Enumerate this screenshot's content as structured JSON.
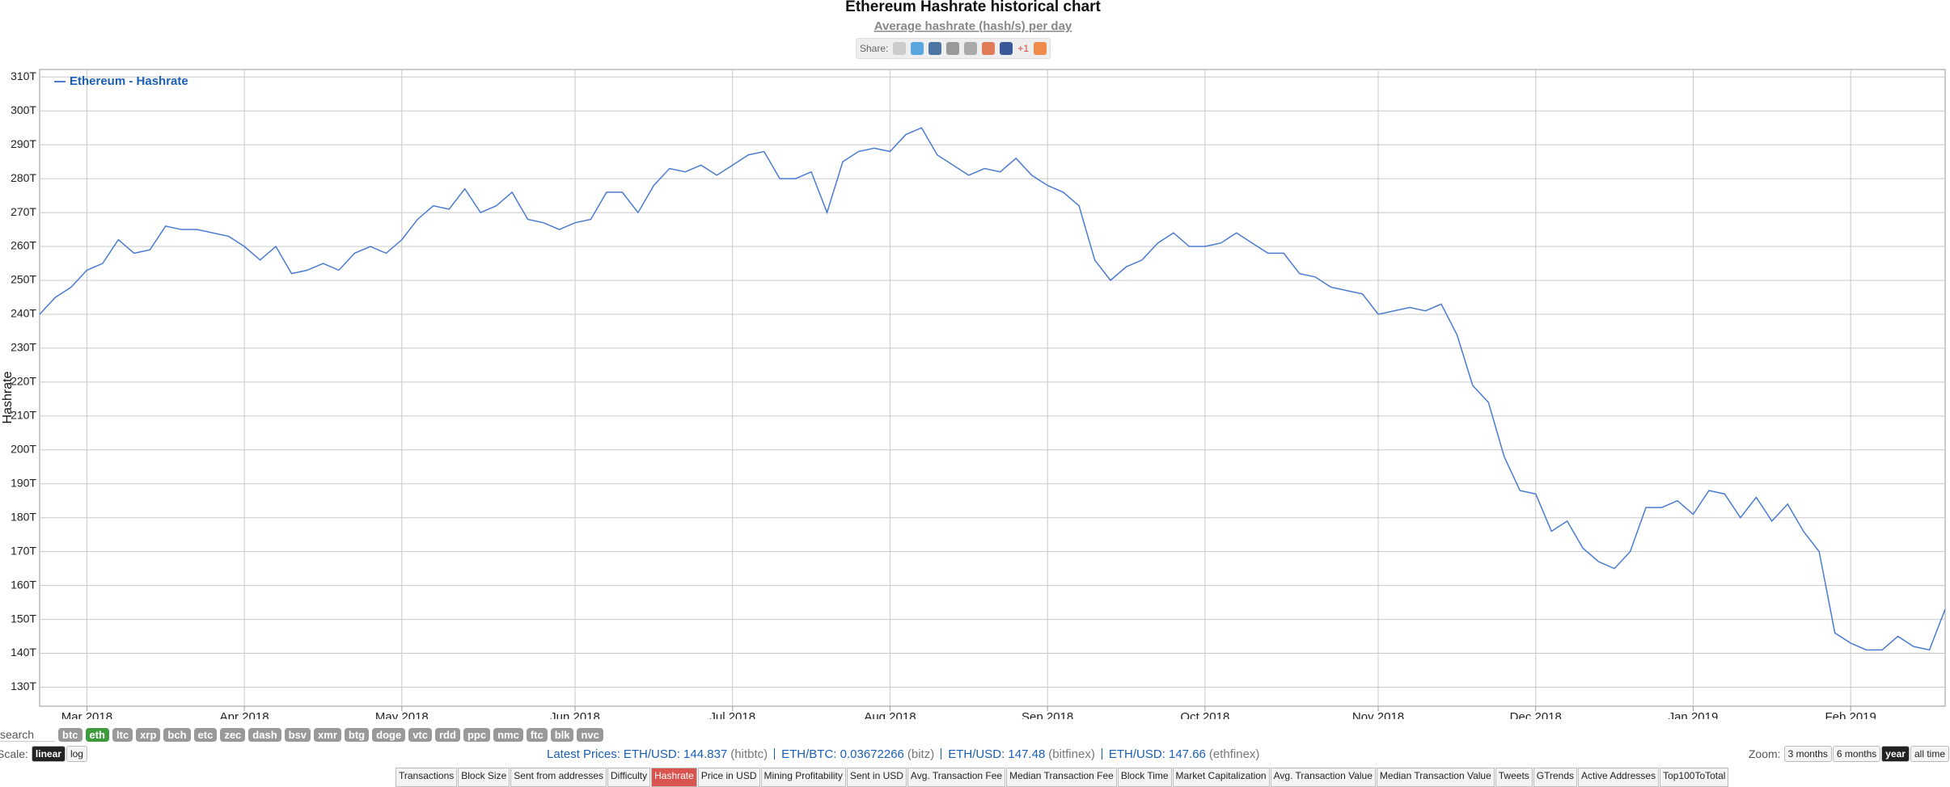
{
  "chart_data": {
    "type": "line",
    "title": "Ethereum Hashrate historical chart",
    "subtitle": "Average hashrate (hash/s) per day",
    "y_label": "Hashrate",
    "legend": "top-left",
    "grid": true,
    "categories": [
      null,
      null,
      null,
      "Mar 2018",
      null,
      null,
      null,
      null,
      null,
      null,
      null,
      null,
      null,
      "Apr 2018",
      null,
      null,
      null,
      null,
      null,
      null,
      null,
      null,
      null,
      "May 2018",
      null,
      null,
      null,
      null,
      null,
      null,
      null,
      null,
      null,
      null,
      "Jun 2018",
      null,
      null,
      null,
      null,
      null,
      null,
      null,
      null,
      null,
      "Jul 2018",
      null,
      null,
      null,
      null,
      null,
      null,
      null,
      null,
      null,
      "Aug 2018",
      null,
      null,
      null,
      null,
      null,
      null,
      null,
      null,
      null,
      "Sep 2018",
      null,
      null,
      null,
      null,
      null,
      null,
      null,
      null,
      null,
      "Oct 2018",
      null,
      null,
      null,
      null,
      null,
      null,
      null,
      null,
      null,
      null,
      "Nov 2018",
      null,
      null,
      null,
      null,
      null,
      null,
      null,
      null,
      null,
      "Dec 2018",
      null,
      null,
      null,
      null,
      null,
      null,
      null,
      null,
      null,
      "Jan 2019",
      null,
      null,
      null,
      null,
      null,
      null,
      null,
      null,
      null,
      "Feb 2019",
      null,
      null,
      null,
      null,
      null,
      null
    ],
    "series": [
      {
        "name": "Ethereum - Hashrate",
        "color": "#4a7bd0",
        "values": [
          240,
          245,
          248,
          253,
          255,
          262,
          258,
          259,
          266,
          265,
          265,
          264,
          263,
          260,
          256,
          260,
          252,
          253,
          255,
          253,
          258,
          260,
          258,
          262,
          268,
          272,
          271,
          277,
          270,
          272,
          276,
          268,
          267,
          265,
          267,
          268,
          276,
          276,
          270,
          278,
          283,
          282,
          284,
          281,
          284,
          287,
          288,
          280,
          280,
          282,
          270,
          285,
          288,
          289,
          288,
          293,
          295,
          287,
          284,
          281,
          283,
          282,
          286,
          281,
          278,
          276,
          272,
          256,
          250,
          254,
          256,
          261,
          264,
          260,
          260,
          261,
          264,
          261,
          258,
          258,
          252,
          251,
          248,
          247,
          246,
          240,
          241,
          242,
          241,
          243,
          234,
          219,
          214,
          198,
          188,
          187,
          176,
          179,
          171,
          167,
          165,
          170,
          183,
          183,
          185,
          181,
          188,
          187,
          180,
          186,
          179,
          184,
          176,
          170,
          146,
          143,
          141,
          141,
          145,
          142,
          141,
          153
        ]
      }
    ],
    "ylim": [
      124.4,
      312.2
    ],
    "yticks": [
      {
        "value": 130,
        "label": "130T"
      },
      {
        "value": 140,
        "label": "140T"
      },
      {
        "value": 150,
        "label": "150T"
      },
      {
        "value": 160,
        "label": "160T"
      },
      {
        "value": 170,
        "label": "170T"
      },
      {
        "value": 180,
        "label": "180T"
      },
      {
        "value": 190,
        "label": "190T"
      },
      {
        "value": 200,
        "label": "200T"
      },
      {
        "value": 210,
        "label": "210T"
      },
      {
        "value": 220,
        "label": "220T"
      },
      {
        "value": 230,
        "label": "230T"
      },
      {
        "value": 240,
        "label": "240T"
      },
      {
        "value": 250,
        "label": "250T"
      },
      {
        "value": 260,
        "label": "260T"
      },
      {
        "value": 270,
        "label": "270T"
      },
      {
        "value": 280,
        "label": "280T"
      },
      {
        "value": 290,
        "label": "290T"
      },
      {
        "value": 300,
        "label": "300T"
      },
      {
        "value": 310,
        "label": "310T"
      }
    ]
  },
  "share": {
    "label": "Share:",
    "gplus_count": "+1"
  },
  "search": "search",
  "coins": [
    {
      "label": "btc",
      "active": false
    },
    {
      "label": "eth",
      "active": true
    },
    {
      "label": "ltc",
      "active": false
    },
    {
      "label": "xrp",
      "active": false
    },
    {
      "label": "bch",
      "active": false
    },
    {
      "label": "etc",
      "active": false
    },
    {
      "label": "zec",
      "active": false
    },
    {
      "label": "dash",
      "active": false
    },
    {
      "label": "bsv",
      "active": false
    },
    {
      "label": "xmr",
      "active": false
    },
    {
      "label": "btg",
      "active": false
    },
    {
      "label": "doge",
      "active": false
    },
    {
      "label": "vtc",
      "active": false
    },
    {
      "label": "rdd",
      "active": false
    },
    {
      "label": "ppc",
      "active": false
    },
    {
      "label": "nmc",
      "active": false
    },
    {
      "label": "ftc",
      "active": false
    },
    {
      "label": "blk",
      "active": false
    },
    {
      "label": "nvc",
      "active": false
    }
  ],
  "scale": {
    "label": "Scale:",
    "options": [
      {
        "label": "linear",
        "active": true
      },
      {
        "label": "log",
        "active": false
      }
    ]
  },
  "prices": {
    "label": "Latest Prices:",
    "items": [
      {
        "pair": "ETH/USD: 144.837",
        "source": "(hitbtc)"
      },
      {
        "pair": "ETH/BTC: 0.03672266",
        "source": "(bitz)"
      },
      {
        "pair": "ETH/USD: 147.48",
        "source": "(bitfinex)"
      },
      {
        "pair": "ETH/USD: 147.66",
        "source": "(ethfinex)"
      }
    ]
  },
  "zoom": {
    "label": "Zoom:",
    "options": [
      {
        "label": "3 months",
        "active": false
      },
      {
        "label": "6 months",
        "active": false
      },
      {
        "label": "year",
        "active": true
      },
      {
        "label": "all time",
        "active": false
      }
    ]
  },
  "tabs": [
    {
      "label": "Transactions",
      "active": false
    },
    {
      "label": "Block Size",
      "active": false
    },
    {
      "label": "Sent from addresses",
      "active": false
    },
    {
      "label": "Difficulty",
      "active": false
    },
    {
      "label": "Hashrate",
      "active": true
    },
    {
      "label": "Price in USD",
      "active": false
    },
    {
      "label": "Mining Profitability",
      "active": false
    },
    {
      "label": "Sent in USD",
      "active": false
    },
    {
      "label": "Avg. Transaction Fee",
      "active": false
    },
    {
      "label": "Median Transaction Fee",
      "active": false
    },
    {
      "label": "Block Time",
      "active": false
    },
    {
      "label": "Market Capitalization",
      "active": false
    },
    {
      "label": "Avg. Transaction Value",
      "active": false
    },
    {
      "label": "Median Transaction Value",
      "active": false
    },
    {
      "label": "Tweets",
      "active": false
    },
    {
      "label": "GTrends",
      "active": false
    },
    {
      "label": "Active Addresses",
      "active": false
    },
    {
      "label": "Top100ToTotal",
      "active": false
    }
  ]
}
